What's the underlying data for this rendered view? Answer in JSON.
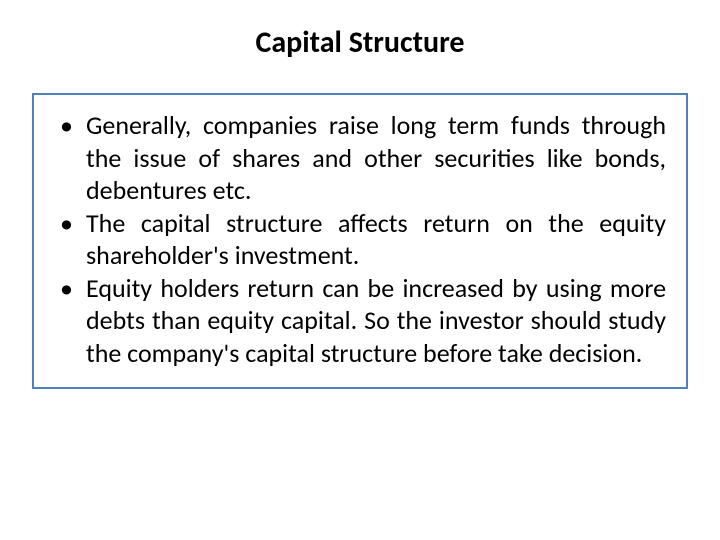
{
  "title": {
    "text": "Capital Structure",
    "fontsize": 30,
    "color": "#000000"
  },
  "content_box": {
    "border_color": "#4f81bd",
    "border_width": 2,
    "background": "#ffffff"
  },
  "bullets": [
    "Generally, companies raise long term funds through the issue of shares and other securities like bonds, debentures etc.",
    "The capital structure affects return on the equity shareholder's investment.",
    "Equity holders return can be increased by using more debts than equity capital. So the investor should study the company's capital structure before take decision."
  ],
  "bullet_style": {
    "fontsize": 26,
    "color": "#000000",
    "bullet_char": "•"
  },
  "slide_background": "#ffffff"
}
